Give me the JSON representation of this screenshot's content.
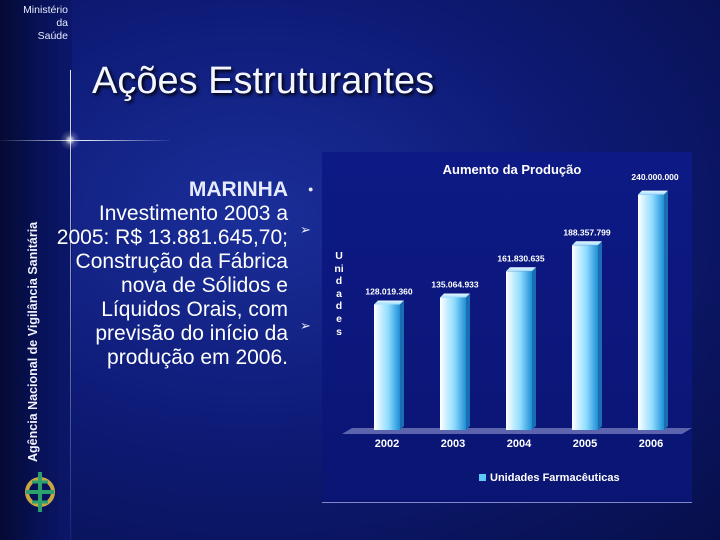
{
  "header": {
    "ministry_lines": [
      "Ministério",
      "da",
      "Saúde"
    ],
    "agency": "Agência Nacional de Vigilância Sanitária",
    "title": "Ações Estruturantes"
  },
  "content": {
    "subtitle": "MARINHA",
    "paragraph1": "Investimento 2003 a 2005: R$ 13.881.645,70;",
    "paragraph2": "Construção da Fábrica nova de Sólidos e Líquidos Orais, com previsão do início da produção em 2006."
  },
  "colors": {
    "accent": "#6fd4ff",
    "bar": "#5ec8f7"
  },
  "chart_data": {
    "type": "bar",
    "title": "Aumento da Produção",
    "ylabel": "Unidades",
    "categories": [
      "2002",
      "2003",
      "2004",
      "2005",
      "2006"
    ],
    "series": [
      {
        "name": "Unidades Farmacêuticas",
        "values": [
          128019360,
          135064933,
          161830635,
          188357799,
          240000000
        ],
        "labels": [
          "128.019.360",
          "135.064.933",
          "161.830.635",
          "188.357.799",
          "240.000.000"
        ]
      }
    ],
    "ylim": [
      0,
      260000000
    ],
    "grid": false,
    "legend": "bottom"
  }
}
